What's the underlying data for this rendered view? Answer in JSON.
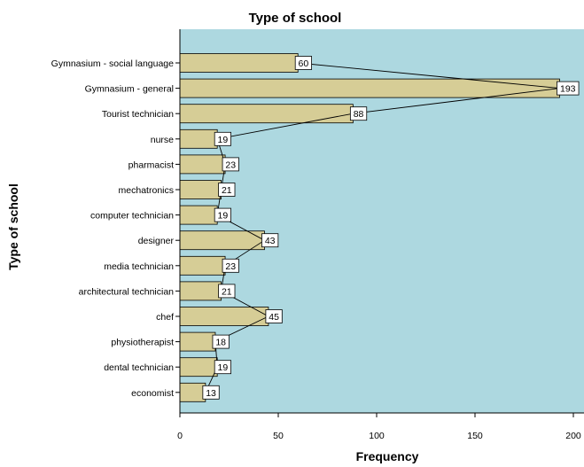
{
  "chart_data": {
    "type": "bar",
    "orientation": "horizontal",
    "title": "Type of school",
    "xlabel": "Frequency",
    "ylabel": "Type of school",
    "categories": [
      "Gymnasium  -  social language",
      "Gymnasium - general",
      "Tourist technician",
      "nurse",
      "pharmacist",
      "mechatronics",
      "computer technician",
      "designer",
      "media technician",
      "architectural technician",
      "chef",
      "physiotherapist",
      "dental technician",
      "economist"
    ],
    "values": [
      60,
      193,
      88,
      19,
      23,
      21,
      19,
      43,
      23,
      21,
      45,
      18,
      19,
      13
    ],
    "xlim": [
      0,
      200
    ],
    "xticks": [
      0,
      50,
      100,
      150,
      200
    ],
    "grid": false,
    "data_labels": true,
    "connecting_line": true,
    "colors": {
      "plot_background": "#add8e0",
      "bar_fill": "#d6cd96",
      "bar_stroke": "#000000",
      "label_box": "#ffffff"
    }
  }
}
